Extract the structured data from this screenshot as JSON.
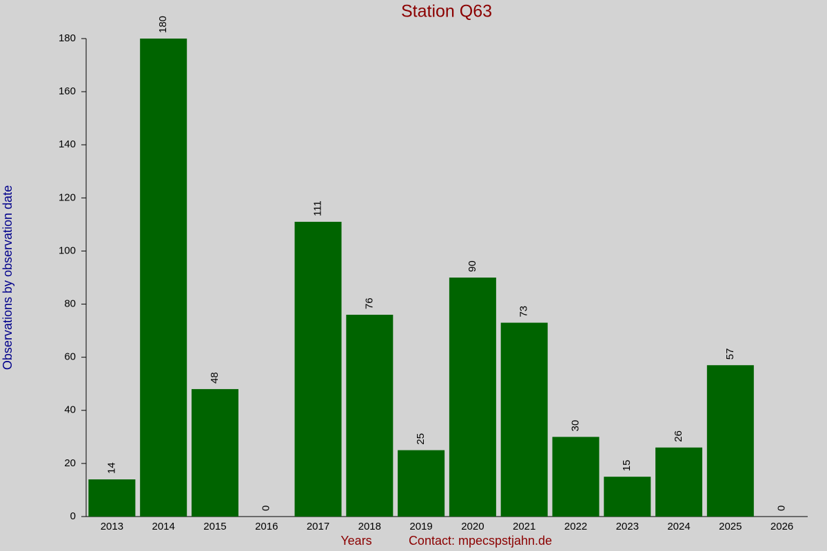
{
  "chart_data": {
    "type": "bar",
    "title": "Station Q63",
    "x_label": "Years",
    "contact": "Contact: mpecspstjahn.de",
    "y_label": "Observations by observation date",
    "categories": [
      "2013",
      "2014",
      "2015",
      "2016",
      "2017",
      "2018",
      "2019",
      "2020",
      "2021",
      "2022",
      "2023",
      "2024",
      "2025",
      "2026"
    ],
    "values": [
      14,
      180,
      48,
      0,
      111,
      76,
      25,
      90,
      73,
      30,
      15,
      26,
      57,
      0
    ],
    "color": "#006400",
    "ylim": [
      0,
      180
    ],
    "yticks": [
      0,
      20,
      40,
      60,
      80,
      100,
      120,
      140,
      160,
      180
    ]
  }
}
